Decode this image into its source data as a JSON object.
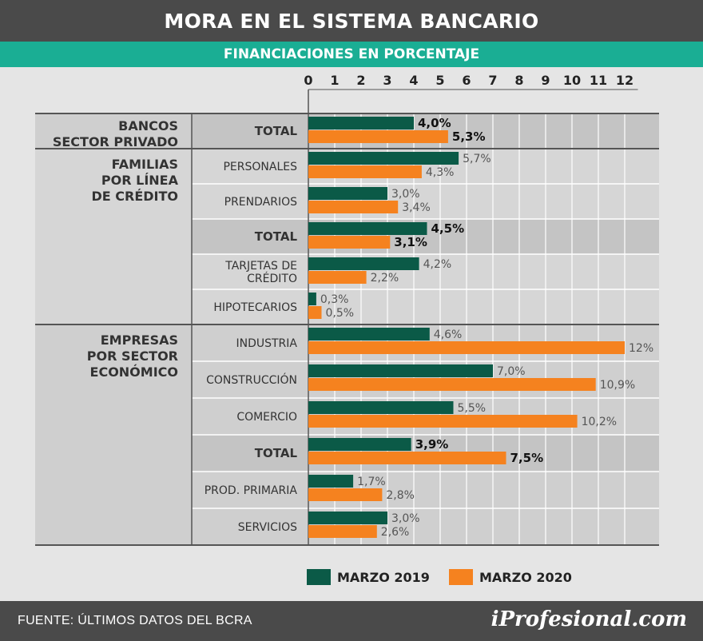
{
  "title": "MORA EN EL SISTEMA BANCARIO",
  "subtitle": "FINANCIACIONES EN PORCENTAJE",
  "footer": {
    "source": "FUENTE:  ÚLTIMOS DATOS DEL BCRA",
    "logo": "iProfesional.com"
  },
  "legend": [
    {
      "label": "MARZO 2019",
      "color": "#0b5a47"
    },
    {
      "label": "MARZO 2020",
      "color": "#f5821f"
    }
  ],
  "chart_data": {
    "type": "bar",
    "orientation": "horizontal",
    "title": "MORA EN EL SISTEMA BANCARIO",
    "subtitle": "FINANCIACIONES EN PORCENTAJE",
    "x_ticks": [
      "0",
      "1",
      "2",
      "3",
      "4",
      "5",
      "6",
      "7",
      "8",
      "9",
      "10",
      "11",
      "12"
    ],
    "xlim": [
      0,
      12.5
    ],
    "groups": [
      {
        "label": [
          "BANCOS",
          "SECTOR PRIVADO"
        ],
        "shaded": true,
        "rows": [
          {
            "label": [
              "TOTAL"
            ],
            "total": true,
            "values": [
              4.0,
              5.3
            ],
            "value_labels": [
              "4,0%",
              "5,3%"
            ]
          }
        ]
      },
      {
        "label": [
          "FAMILIAS",
          "POR LÍNEA",
          "DE CRÉDITO"
        ],
        "shaded": false,
        "rows": [
          {
            "label": [
              "PERSONALES"
            ],
            "total": false,
            "values": [
              5.7,
              4.3
            ],
            "value_labels": [
              "5,7%",
              "4,3%"
            ]
          },
          {
            "label": [
              "PRENDARIOS"
            ],
            "total": false,
            "values": [
              3.0,
              3.4
            ],
            "value_labels": [
              "3,0%",
              "3,4%"
            ]
          },
          {
            "label": [
              "TOTAL"
            ],
            "total": true,
            "values": [
              4.5,
              3.1
            ],
            "value_labels": [
              "4,5%",
              "3,1%"
            ]
          },
          {
            "label": [
              "TARJETAS DE",
              "CRÉDITO"
            ],
            "total": false,
            "values": [
              4.2,
              2.2
            ],
            "value_labels": [
              "4,2%",
              "2,2%"
            ]
          },
          {
            "label": [
              "HIPOTECARIOS"
            ],
            "total": false,
            "values": [
              0.3,
              0.5
            ],
            "value_labels": [
              "0,3%",
              "0,5%"
            ]
          }
        ]
      },
      {
        "label": [
          "EMPRESAS",
          "POR SECTOR",
          "ECONÓMICO"
        ],
        "shaded": true,
        "rows": [
          {
            "label": [
              "INDUSTRIA"
            ],
            "total": false,
            "values": [
              4.6,
              12.0
            ],
            "value_labels": [
              "4,6%",
              "12%"
            ]
          },
          {
            "label": [
              "CONSTRUCCIÓN"
            ],
            "total": false,
            "values": [
              7.0,
              10.9
            ],
            "value_labels": [
              "7,0%",
              "10,9%"
            ]
          },
          {
            "label": [
              "COMERCIO"
            ],
            "total": false,
            "values": [
              5.5,
              10.2
            ],
            "value_labels": [
              "5,5%",
              "10,2%"
            ]
          },
          {
            "label": [
              "TOTAL"
            ],
            "total": true,
            "values": [
              3.9,
              7.5
            ],
            "value_labels": [
              "3,9%",
              "7,5%"
            ]
          },
          {
            "label": [
              "PROD. PRIMARIA"
            ],
            "total": false,
            "values": [
              1.7,
              2.8
            ],
            "value_labels": [
              "1,7%",
              "2,8%"
            ]
          },
          {
            "label": [
              "SERVICIOS"
            ],
            "total": false,
            "values": [
              3.0,
              2.6
            ],
            "value_labels": [
              "3,0%",
              "2,6%"
            ]
          }
        ]
      }
    ],
    "series": [
      {
        "name": "MARZO 2019",
        "color": "#0b5a47"
      },
      {
        "name": "MARZO 2020",
        "color": "#f5821f"
      }
    ],
    "colors": {
      "group_shade": "#cfcfcf",
      "total_shade": "#c4c4c4",
      "panel": "#d6d6d6",
      "grid": "#ffffff",
      "rule": "#555555"
    }
  }
}
